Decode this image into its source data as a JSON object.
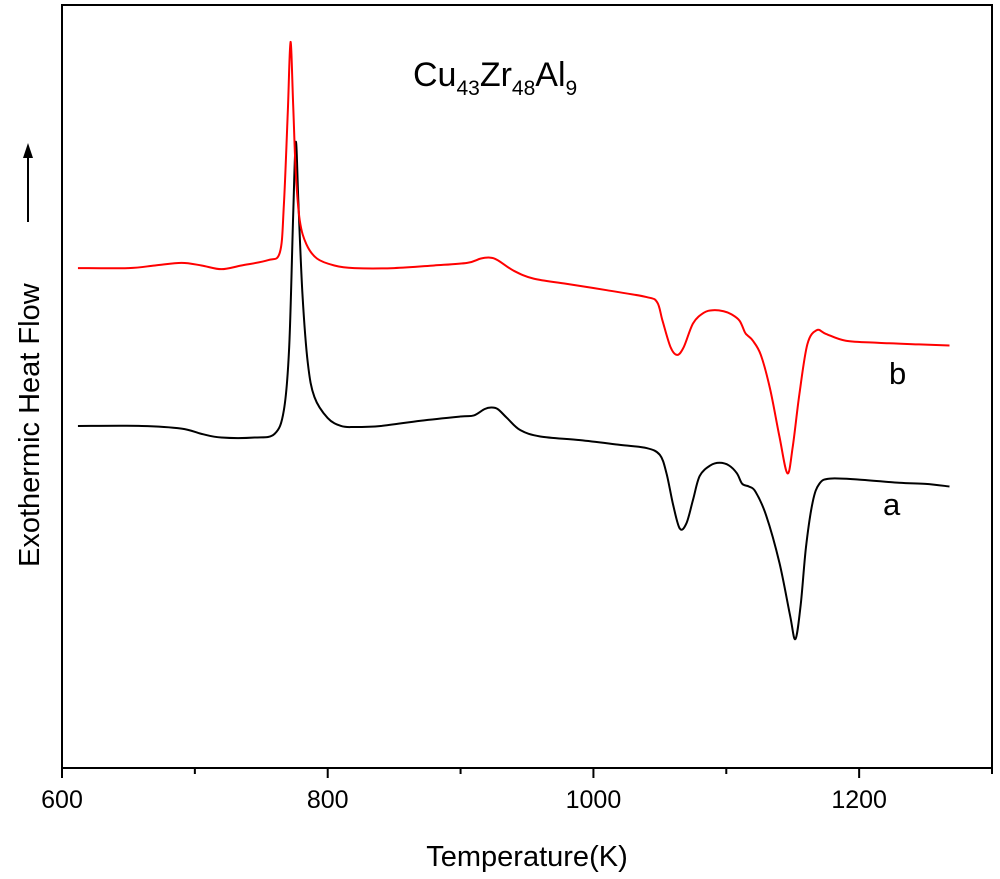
{
  "chart_data": {
    "type": "line",
    "title": {
      "parts": [
        {
          "text": "Cu",
          "sub": false
        },
        {
          "text": "43",
          "sub": true
        },
        {
          "text": "Zr",
          "sub": false
        },
        {
          "text": "48",
          "sub": true
        },
        {
          "text": "Al",
          "sub": false
        },
        {
          "text": "9",
          "sub": true
        }
      ]
    },
    "xlabel": "Temperature(K)",
    "ylabel": "Exothermic Heat Flow",
    "xlim": [
      600,
      1300
    ],
    "ylim": [
      -6.5,
      8.0
    ],
    "xticks": [
      {
        "value": 600,
        "label": "600"
      },
      {
        "value": 800,
        "label": "800"
      },
      {
        "value": 1000,
        "label": "1000"
      },
      {
        "value": 1200,
        "label": "1200"
      }
    ],
    "minor_xticks": [
      700,
      900,
      1100,
      1300
    ],
    "y_arrow": true,
    "series": [
      {
        "name": "a",
        "label": "a",
        "color": "#000000",
        "points": [
          [
            612,
            0.0
          ],
          [
            660,
            0.0
          ],
          [
            690,
            -0.05
          ],
          [
            705,
            -0.15
          ],
          [
            720,
            -0.22
          ],
          [
            745,
            -0.22
          ],
          [
            760,
            -0.15
          ],
          [
            767,
            0.3
          ],
          [
            771,
            1.5
          ],
          [
            774,
            4.0
          ],
          [
            776,
            5.4
          ],
          [
            778,
            4.2
          ],
          [
            781,
            2.5
          ],
          [
            785,
            1.2
          ],
          [
            790,
            0.55
          ],
          [
            800,
            0.15
          ],
          [
            810,
            0.0
          ],
          [
            820,
            -0.02
          ],
          [
            840,
            0.0
          ],
          [
            870,
            0.1
          ],
          [
            900,
            0.18
          ],
          [
            910,
            0.2
          ],
          [
            918,
            0.32
          ],
          [
            923,
            0.35
          ],
          [
            928,
            0.32
          ],
          [
            935,
            0.15
          ],
          [
            945,
            -0.08
          ],
          [
            960,
            -0.2
          ],
          [
            990,
            -0.27
          ],
          [
            1020,
            -0.36
          ],
          [
            1040,
            -0.42
          ],
          [
            1050,
            -0.55
          ],
          [
            1055,
            -0.9
          ],
          [
            1060,
            -1.5
          ],
          [
            1065,
            -1.95
          ],
          [
            1070,
            -1.85
          ],
          [
            1075,
            -1.4
          ],
          [
            1080,
            -0.95
          ],
          [
            1088,
            -0.75
          ],
          [
            1095,
            -0.7
          ],
          [
            1102,
            -0.75
          ],
          [
            1108,
            -0.9
          ],
          [
            1112,
            -1.1
          ],
          [
            1117,
            -1.15
          ],
          [
            1122,
            -1.25
          ],
          [
            1130,
            -1.7
          ],
          [
            1140,
            -2.6
          ],
          [
            1148,
            -3.6
          ],
          [
            1152,
            -4.05
          ],
          [
            1156,
            -3.4
          ],
          [
            1160,
            -2.3
          ],
          [
            1165,
            -1.45
          ],
          [
            1170,
            -1.1
          ],
          [
            1178,
            -1.0
          ],
          [
            1200,
            -1.02
          ],
          [
            1230,
            -1.08
          ],
          [
            1250,
            -1.1
          ],
          [
            1268,
            -1.15
          ]
        ]
      },
      {
        "name": "b",
        "label": "b",
        "color": "#ff0000",
        "points": [
          [
            612,
            3.0
          ],
          [
            650,
            3.0
          ],
          [
            670,
            3.05
          ],
          [
            690,
            3.1
          ],
          [
            705,
            3.05
          ],
          [
            720,
            2.98
          ],
          [
            735,
            3.05
          ],
          [
            755,
            3.15
          ],
          [
            764,
            3.3
          ],
          [
            767,
            4.2
          ],
          [
            770,
            6.0
          ],
          [
            772,
            7.3
          ],
          [
            774,
            6.1
          ],
          [
            776,
            4.8
          ],
          [
            779,
            3.9
          ],
          [
            784,
            3.45
          ],
          [
            792,
            3.18
          ],
          [
            805,
            3.05
          ],
          [
            820,
            3.0
          ],
          [
            850,
            3.0
          ],
          [
            880,
            3.05
          ],
          [
            905,
            3.1
          ],
          [
            915,
            3.18
          ],
          [
            922,
            3.2
          ],
          [
            928,
            3.15
          ],
          [
            940,
            2.95
          ],
          [
            955,
            2.8
          ],
          [
            980,
            2.7
          ],
          [
            1010,
            2.58
          ],
          [
            1040,
            2.45
          ],
          [
            1048,
            2.35
          ],
          [
            1052,
            2.0
          ],
          [
            1058,
            1.5
          ],
          [
            1063,
            1.35
          ],
          [
            1068,
            1.5
          ],
          [
            1075,
            1.95
          ],
          [
            1083,
            2.15
          ],
          [
            1090,
            2.2
          ],
          [
            1098,
            2.18
          ],
          [
            1104,
            2.12
          ],
          [
            1110,
            2.0
          ],
          [
            1114,
            1.78
          ],
          [
            1116,
            1.72
          ],
          [
            1120,
            1.62
          ],
          [
            1126,
            1.35
          ],
          [
            1133,
            0.7
          ],
          [
            1140,
            -0.2
          ],
          [
            1146,
            -0.9
          ],
          [
            1150,
            -0.4
          ],
          [
            1155,
            0.6
          ],
          [
            1161,
            1.55
          ],
          [
            1168,
            1.82
          ],
          [
            1175,
            1.75
          ],
          [
            1190,
            1.62
          ],
          [
            1215,
            1.58
          ],
          [
            1245,
            1.55
          ],
          [
            1268,
            1.53
          ]
        ]
      }
    ]
  }
}
